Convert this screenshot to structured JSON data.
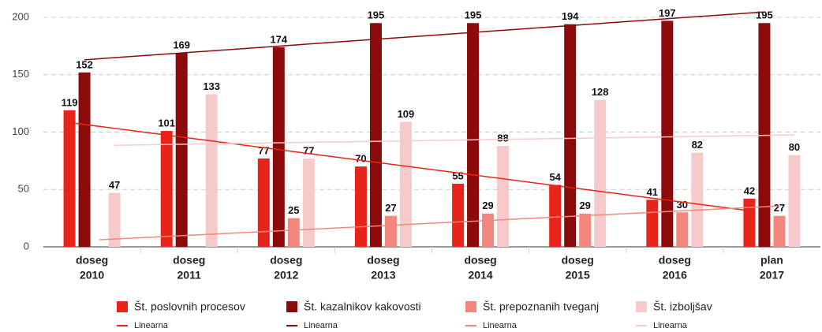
{
  "chart_data": {
    "type": "bar",
    "categories": [
      [
        "doseg",
        "2010"
      ],
      [
        "doseg",
        "2011"
      ],
      [
        "doseg",
        "2012"
      ],
      [
        "doseg",
        "2013"
      ],
      [
        "doseg",
        "2014"
      ],
      [
        "doseg",
        "2015"
      ],
      [
        "doseg",
        "2016"
      ],
      [
        "plan",
        "2017"
      ]
    ],
    "series": [
      {
        "name": "Št. poslovnih procesov",
        "color": "#e8231a",
        "values": [
          119,
          101,
          77,
          70,
          55,
          54,
          41,
          42
        ]
      },
      {
        "name": "Št. kazalnikov kakovosti",
        "color": "#8b0a0a",
        "values": [
          152,
          169,
          174,
          195,
          195,
          194,
          197,
          195
        ]
      },
      {
        "name": "Št. prepoznanih tveganj",
        "color": "#f4877d",
        "values": [
          null,
          null,
          25,
          27,
          29,
          29,
          30,
          27
        ]
      },
      {
        "name": "Št. izboljšav",
        "color": "#f6caca",
        "values": [
          47,
          133,
          77,
          109,
          88,
          128,
          82,
          80
        ]
      }
    ],
    "trendline_name": "Linearna",
    "trendline": "linear",
    "ylim": [
      0,
      200
    ],
    "yticks": [
      0,
      50,
      100,
      150,
      200
    ],
    "grid": true,
    "legend": "bottom"
  }
}
